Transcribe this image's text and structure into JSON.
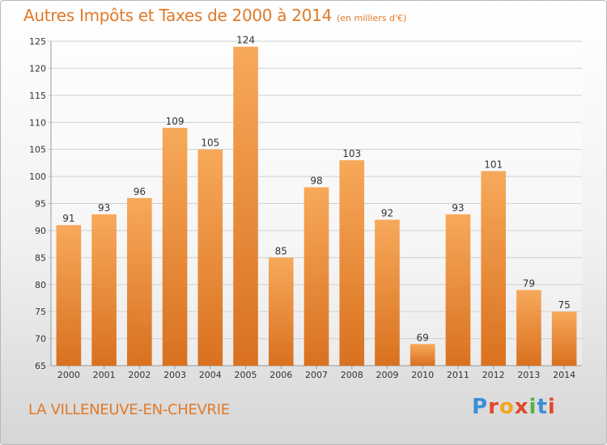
{
  "header": {
    "title": "Autres Impôts et Taxes de 2000 à 2014",
    "unit": "(en milliers d'€)"
  },
  "footer": {
    "commune": "LA VILLENEUVE-EN-CHEVRIE",
    "logo_text": "Proxiti",
    "logo_colors": [
      "#3b8fd6",
      "#e0492b",
      "#f2a51c",
      "#e0492b",
      "#57b33e",
      "#3b8fd6",
      "#e0492b"
    ]
  },
  "colors": {
    "bar_top": "#f7a95a",
    "bar_bottom": "#d9711f",
    "accent": "#e07a2a",
    "grid": "#cfcfcf",
    "axis_text": "#333333"
  },
  "chart_data": {
    "type": "bar",
    "title": "Autres Impôts et Taxes de 2000 à 2014",
    "subtitle": "(en milliers d'€)",
    "xlabel": "",
    "ylabel": "",
    "categories": [
      "2000",
      "2001",
      "2002",
      "2003",
      "2004",
      "2005",
      "2006",
      "2007",
      "2008",
      "2009",
      "2010",
      "2011",
      "2012",
      "2013",
      "2014"
    ],
    "values": [
      91,
      93,
      96,
      109,
      105,
      124,
      85,
      98,
      103,
      92,
      69,
      93,
      101,
      79,
      75
    ],
    "ylim": [
      65,
      125
    ],
    "yticks": [
      65,
      70,
      75,
      80,
      85,
      90,
      95,
      100,
      105,
      110,
      115,
      120,
      125
    ],
    "grid": true,
    "data_labels": true
  }
}
